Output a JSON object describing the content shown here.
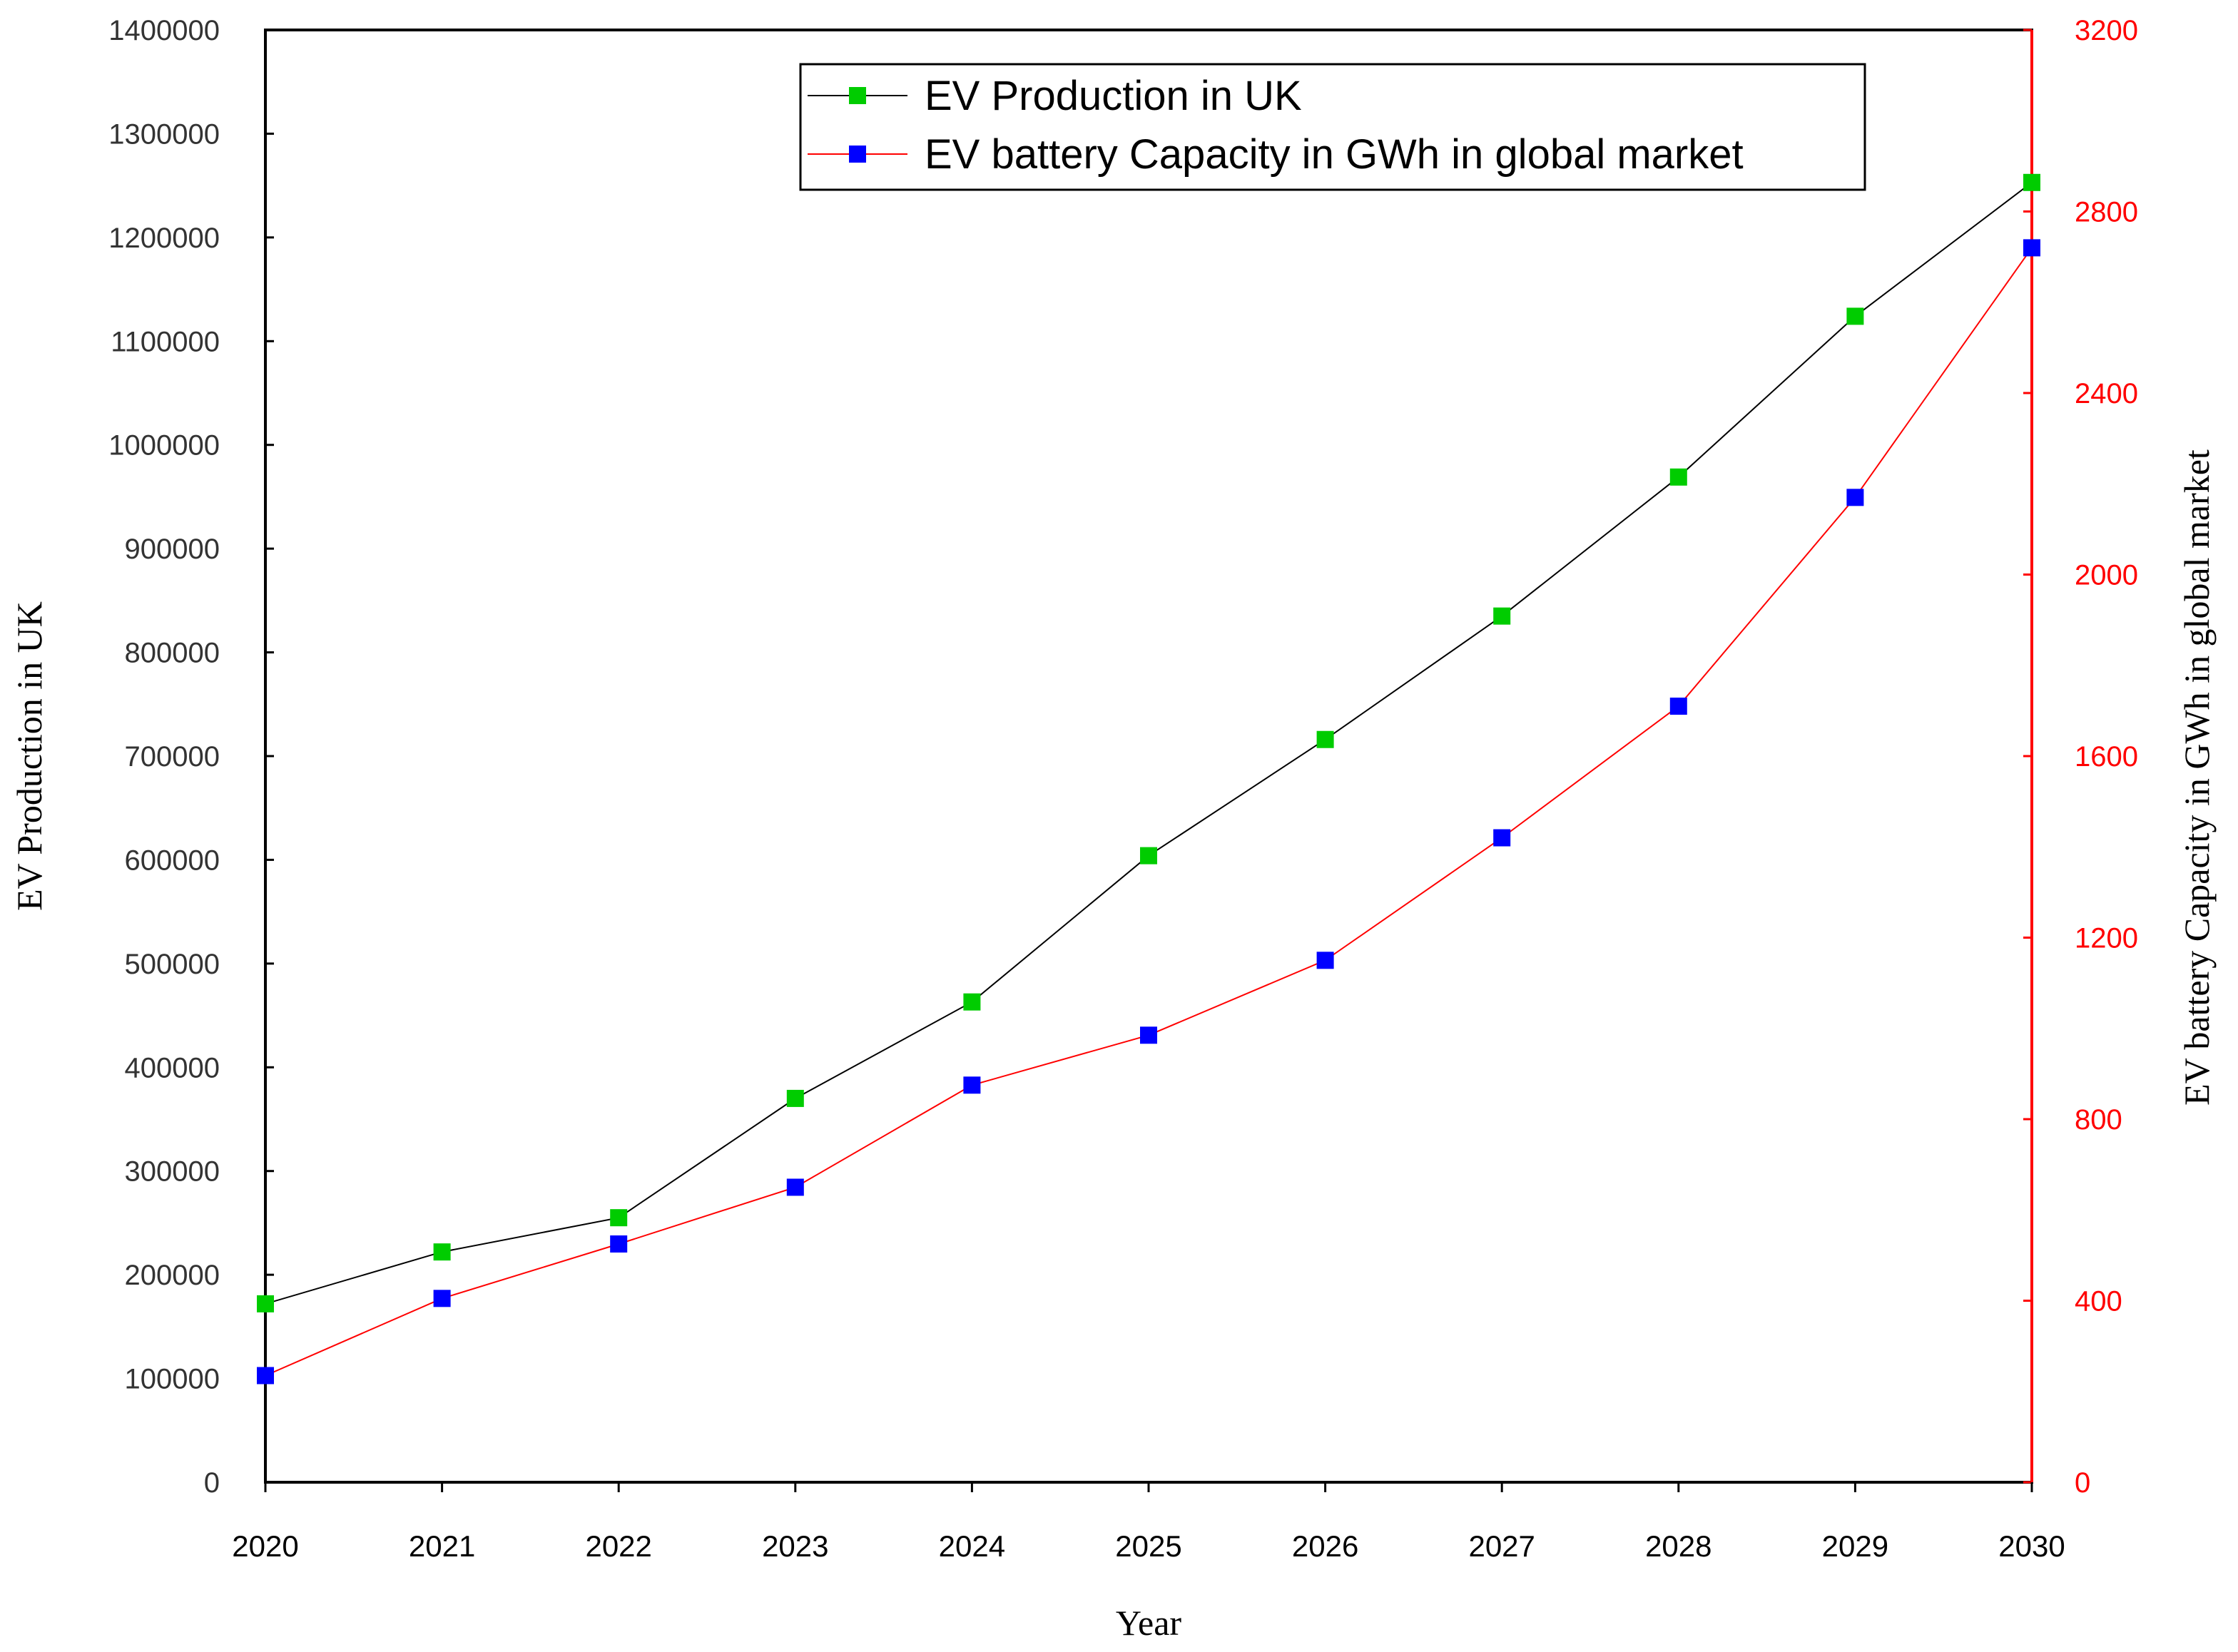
{
  "chart_data": {
    "type": "line",
    "title": "",
    "x": [
      "2020",
      "2021",
      "2022",
      "2023",
      "2024",
      "2025",
      "2026",
      "2027",
      "2028",
      "2029",
      "2030"
    ],
    "xlabel": "Year",
    "ylabel": "EV Production in UK",
    "y2label": "EV battery Capacity in GWh in global market",
    "ylim": [
      0,
      1400000
    ],
    "y2lim": [
      0,
      3200
    ],
    "yticks": [
      "0",
      "100000",
      "200000",
      "300000",
      "400000",
      "500000",
      "600000",
      "700000",
      "800000",
      "900000",
      "1000000",
      "1100000",
      "1200000",
      "1300000",
      "1400000"
    ],
    "y2ticks": [
      "0",
      "400",
      "800",
      "1200",
      "1600",
      "2000",
      "2400",
      "2800",
      "3200"
    ],
    "grid": false,
    "legend_position": "top-right",
    "series": [
      {
        "name": "EV Production in UK",
        "axis": "left",
        "values": [
          172000,
          222000,
          255000,
          370000,
          463000,
          604000,
          716000,
          835000,
          969000,
          1124000,
          1253000
        ],
        "line_color": "#000000",
        "marker_color": "#00cc00"
      },
      {
        "name": "EV battery Capacity in GWh in global market",
        "axis": "right",
        "values": [
          235,
          405,
          525,
          650,
          875,
          985,
          1150,
          1420,
          1710,
          2170,
          2720
        ],
        "line_color": "#ff0000",
        "marker_color": "#0000ff"
      }
    ]
  }
}
